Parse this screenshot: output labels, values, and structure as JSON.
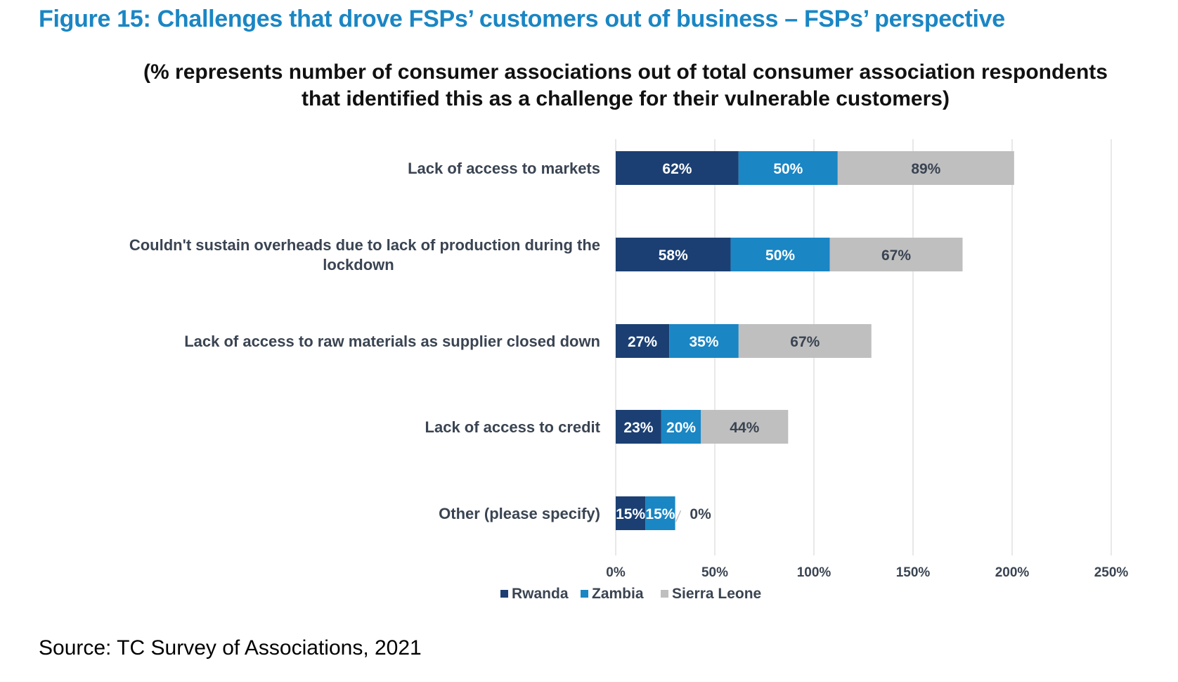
{
  "figure": {
    "title": "Figure 15: Challenges that drove FSPs’ customers out of business – FSPs’ perspective",
    "subtitle_line1": "(% represents number of consumer associations out of total consumer association respondents",
    "subtitle_line2": "that identified this as a challenge for their vulnerable customers)",
    "source": "Source: TC Survey of Associations, 2021"
  },
  "chart_data": {
    "type": "bar",
    "orientation": "horizontal",
    "stacked": true,
    "categories": [
      [
        "Lack of access to markets"
      ],
      [
        "Couldn't sustain overheads due to lack of production during the",
        "lockdown"
      ],
      [
        "Lack of access to raw materials as supplier closed down"
      ],
      [
        "Lack of access to credit"
      ],
      [
        "Other (please specify)"
      ]
    ],
    "series": [
      {
        "name": "Rwanda",
        "color": "#1b3f72",
        "values": [
          62,
          58,
          27,
          23,
          15
        ],
        "labels": [
          "62%",
          "58%",
          "27%",
          "23%",
          "15%"
        ]
      },
      {
        "name": "Zambia",
        "color": "#1a86c4",
        "values": [
          50,
          50,
          35,
          20,
          15
        ],
        "labels": [
          "50%",
          "50%",
          "35%",
          "20%",
          "15%"
        ]
      },
      {
        "name": "Sierra Leone",
        "color": "#bfbfbf",
        "values": [
          89,
          67,
          67,
          44,
          0
        ],
        "labels": [
          "89%",
          "67%",
          "67%",
          "44%",
          "0%"
        ]
      }
    ],
    "xlim": [
      0,
      250
    ],
    "xticks": [
      0,
      50,
      100,
      150,
      200,
      250
    ],
    "xtick_labels": [
      "0%",
      "50%",
      "100%",
      "150%",
      "200%",
      "250%"
    ],
    "grid": "vertical",
    "legend": "bottom-center"
  }
}
